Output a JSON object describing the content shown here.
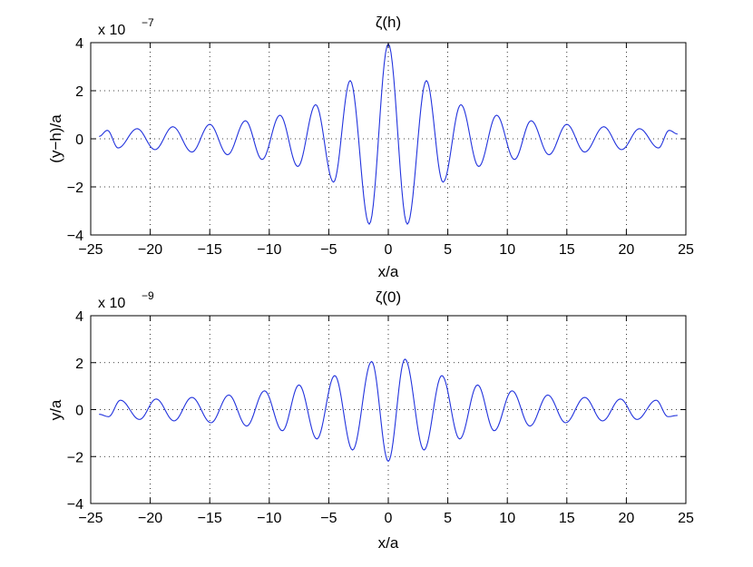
{
  "chart_data": [
    {
      "type": "line",
      "title": "ζ(h)",
      "xlabel": "x/a",
      "ylabel": "(y−h)/a",
      "y_multiplier": "x 10",
      "y_exponent": "−7",
      "xlim": [
        -25,
        25
      ],
      "ylim": [
        -4,
        4
      ],
      "grid": true,
      "color": "#2233dd",
      "xticks": [
        -25,
        -20,
        -15,
        -10,
        -5,
        0,
        5,
        10,
        15,
        20,
        25
      ],
      "xtick_labels": [
        "−25",
        "−20",
        "−15",
        "−10",
        "−5",
        "0",
        "5",
        "10",
        "15",
        "20",
        "25"
      ],
      "yticks": [
        -4,
        -2,
        0,
        2,
        4
      ],
      "ytick_labels": [
        "−4",
        "−2",
        "0",
        "2",
        "4"
      ],
      "series": [
        {
          "x": [
            -24.3,
            -23.6,
            -22.7,
            -21.1,
            -19.6,
            -18.1,
            -16.5,
            -15.0,
            -13.5,
            -12.0,
            -10.6,
            -9.1,
            -7.6,
            -6.1,
            -4.6,
            -3.2,
            -1.6,
            0.0,
            1.6,
            3.2,
            4.6,
            6.1,
            7.6,
            9.1,
            10.6,
            12.0,
            13.5,
            15.0,
            16.5,
            18.1,
            19.6,
            21.1,
            22.7,
            23.6,
            24.3
          ],
          "y": [
            0.1,
            0.35,
            -0.38,
            0.42,
            -0.45,
            0.5,
            -0.55,
            0.6,
            -0.66,
            0.75,
            -0.86,
            0.98,
            -1.15,
            1.42,
            -1.8,
            2.42,
            -3.55,
            3.95,
            -3.55,
            2.42,
            -1.8,
            1.42,
            -1.15,
            0.98,
            -0.86,
            0.75,
            -0.66,
            0.6,
            -0.55,
            0.5,
            -0.45,
            0.42,
            -0.38,
            0.35,
            0.2
          ]
        }
      ]
    },
    {
      "type": "line",
      "title": "ζ(0)",
      "xlabel": "x/a",
      "ylabel": "y/a",
      "y_multiplier": "x 10",
      "y_exponent": "−9",
      "xlim": [
        -25,
        25
      ],
      "ylim": [
        -4,
        4
      ],
      "grid": true,
      "color": "#2233dd",
      "xticks": [
        -25,
        -20,
        -15,
        -10,
        -5,
        0,
        5,
        10,
        15,
        20,
        25
      ],
      "xtick_labels": [
        "−25",
        "−20",
        "−15",
        "−10",
        "−5",
        "0",
        "5",
        "10",
        "15",
        "20",
        "25"
      ],
      "yticks": [
        -4,
        -2,
        0,
        2,
        4
      ],
      "ytick_labels": [
        "−4",
        "−2",
        "0",
        "2",
        "4"
      ],
      "series": [
        {
          "x": [
            -24.3,
            -23.5,
            -22.5,
            -20.9,
            -19.5,
            -18.0,
            -16.5,
            -14.9,
            -13.4,
            -11.9,
            -10.4,
            -8.9,
            -7.5,
            -6.0,
            -4.5,
            -3.0,
            -1.4,
            0.0,
            1.4,
            3.0,
            4.5,
            6.0,
            7.5,
            8.9,
            10.4,
            11.9,
            13.4,
            14.9,
            16.5,
            18.0,
            19.5,
            20.9,
            22.5,
            23.5,
            24.3
          ],
          "y": [
            -0.2,
            -0.3,
            0.4,
            -0.42,
            0.45,
            -0.48,
            0.52,
            -0.56,
            0.62,
            -0.7,
            0.8,
            -0.9,
            1.05,
            -1.25,
            1.45,
            -1.72,
            2.05,
            -2.2,
            2.15,
            -1.72,
            1.45,
            -1.25,
            1.05,
            -0.9,
            0.8,
            -0.7,
            0.62,
            -0.56,
            0.52,
            -0.48,
            0.45,
            -0.42,
            0.4,
            -0.3,
            -0.25
          ]
        }
      ]
    }
  ]
}
